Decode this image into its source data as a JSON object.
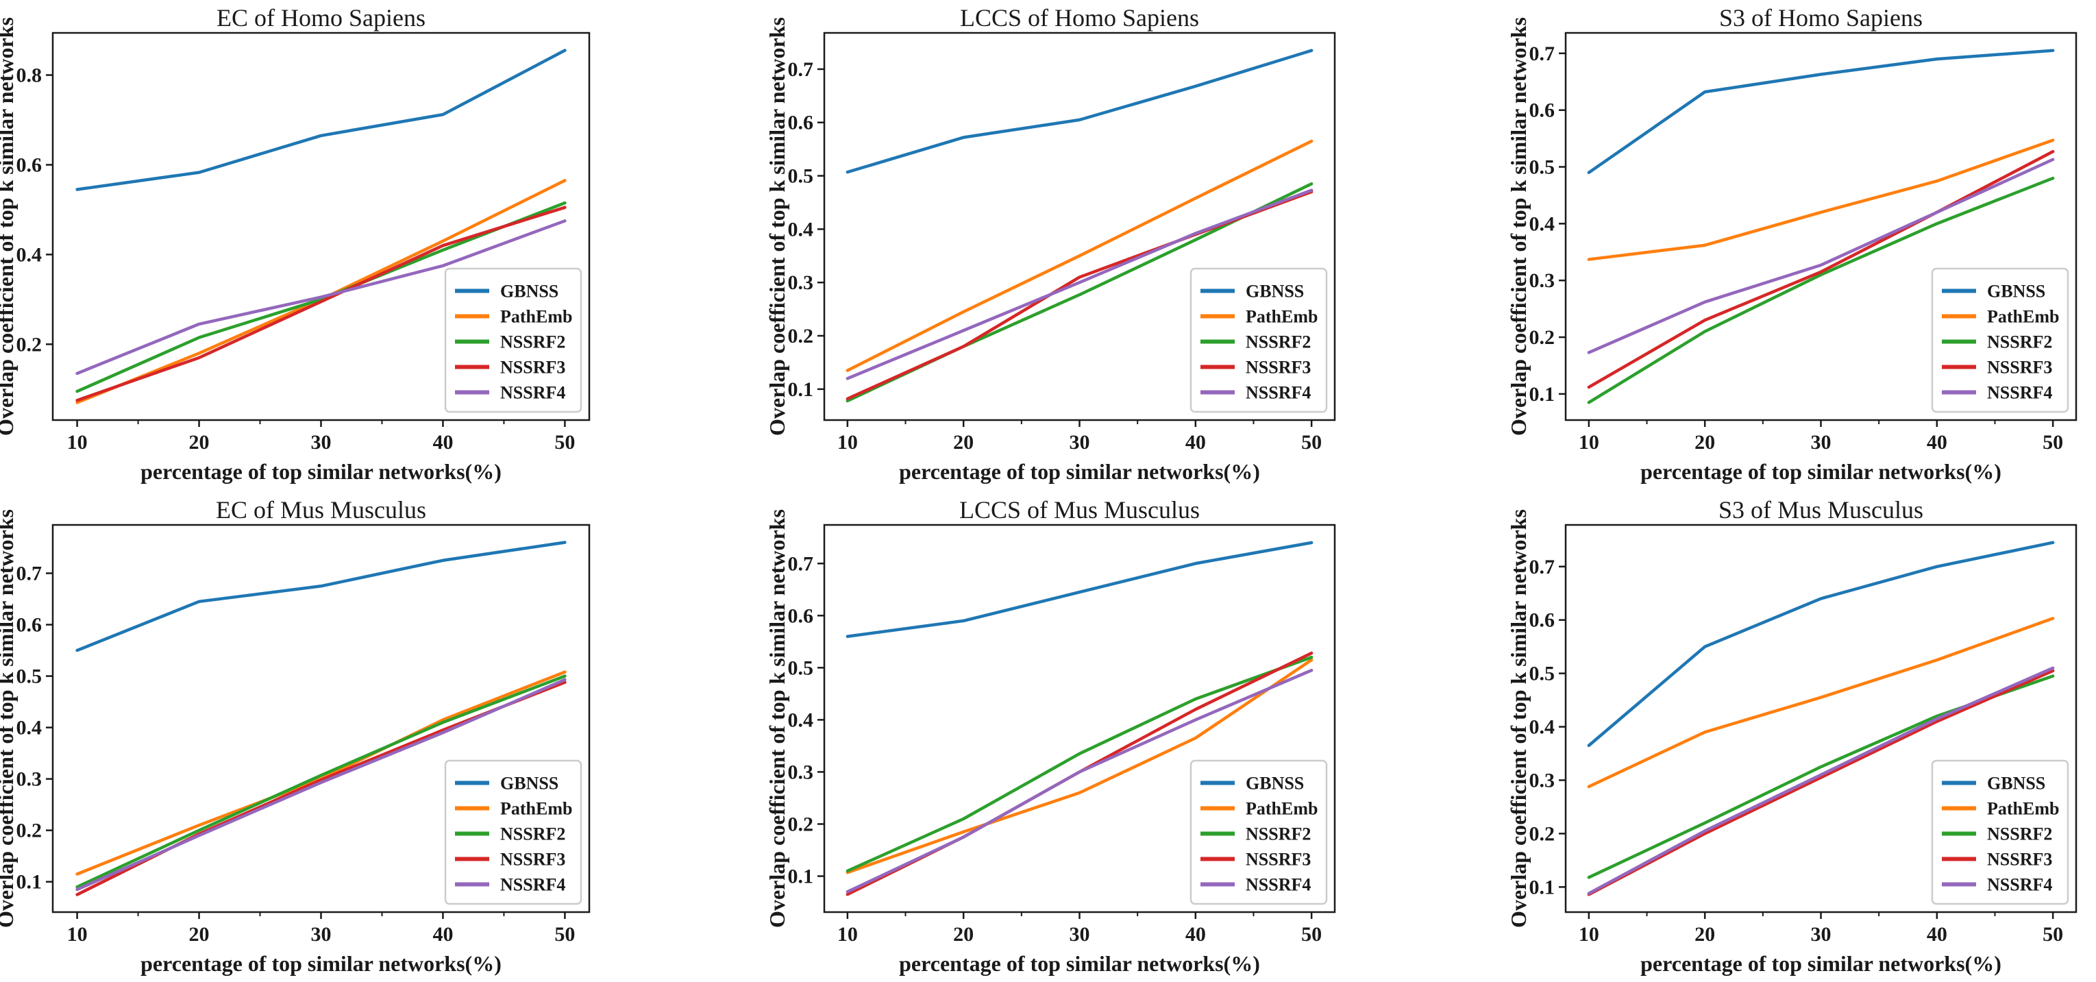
{
  "figure": {
    "background": "#ffffff",
    "text_color": "#1a1a1a",
    "spine_color": "#1a1a1a"
  },
  "palette": {
    "GBNSS": "#1f77b4",
    "PathEmb": "#ff7f0e",
    "NSSRF2": "#2ca02c",
    "NSSRF3": "#d62728",
    "NSSRF4": "#9467bd"
  },
  "legend_labels": [
    "GBNSS",
    "PathEmb",
    "NSSRF2",
    "NSSRF3",
    "NSSRF4"
  ],
  "chart_data": [
    {
      "type": "line",
      "title": "EC of Homo Sapiens",
      "xlabel": "percentage of top similar networks(%)",
      "ylabel": "Overlap coefficient of top k similar networks",
      "x": [
        10,
        20,
        30,
        40,
        50
      ],
      "xticks": [
        10,
        20,
        30,
        40,
        50
      ],
      "xminorticks": [
        15,
        25,
        35,
        45
      ],
      "xlim": [
        8,
        52
      ],
      "yticks": [
        0.2,
        0.4,
        0.6,
        0.8
      ],
      "ylim": [
        0.031,
        0.894
      ],
      "grid": false,
      "legend_position": "lower right",
      "series": [
        {
          "name": "GBNSS",
          "color": "#1f77b4",
          "values": [
            0.545,
            0.583,
            0.665,
            0.712,
            0.855
          ]
        },
        {
          "name": "PathEmb",
          "color": "#ff7f0e",
          "values": [
            0.07,
            0.18,
            0.3,
            0.43,
            0.565
          ]
        },
        {
          "name": "NSSRF2",
          "color": "#2ca02c",
          "values": [
            0.095,
            0.215,
            0.3,
            0.41,
            0.515
          ]
        },
        {
          "name": "NSSRF3",
          "color": "#d62728",
          "values": [
            0.075,
            0.17,
            0.295,
            0.42,
            0.505
          ]
        },
        {
          "name": "NSSRF4",
          "color": "#9467bd",
          "values": [
            0.135,
            0.245,
            0.305,
            0.375,
            0.475
          ]
        }
      ]
    },
    {
      "type": "line",
      "title": "LCCS of Homo Sapiens",
      "xlabel": "percentage of top similar networks(%)",
      "ylabel": "Overlap coefficient of top k similar networks",
      "x": [
        10,
        20,
        30,
        40,
        50
      ],
      "xticks": [
        10,
        20,
        30,
        40,
        50
      ],
      "xminorticks": [
        15,
        25,
        35,
        45
      ],
      "xlim": [
        8,
        52
      ],
      "yticks": [
        0.1,
        0.2,
        0.3,
        0.4,
        0.5,
        0.6,
        0.7
      ],
      "ylim": [
        0.042,
        0.768
      ],
      "grid": false,
      "legend_position": "lower right",
      "series": [
        {
          "name": "GBNSS",
          "color": "#1f77b4",
          "values": [
            0.507,
            0.572,
            0.605,
            0.668,
            0.735
          ]
        },
        {
          "name": "PathEmb",
          "color": "#ff7f0e",
          "values": [
            0.135,
            0.245,
            0.35,
            0.458,
            0.565
          ]
        },
        {
          "name": "NSSRF2",
          "color": "#2ca02c",
          "values": [
            0.078,
            0.18,
            0.277,
            0.38,
            0.485
          ]
        },
        {
          "name": "NSSRF3",
          "color": "#d62728",
          "values": [
            0.082,
            0.18,
            0.31,
            0.39,
            0.47
          ]
        },
        {
          "name": "NSSRF4",
          "color": "#9467bd",
          "values": [
            0.12,
            0.21,
            0.3,
            0.392,
            0.473
          ]
        }
      ]
    },
    {
      "type": "line",
      "title": "S3 of Homo Sapiens",
      "xlabel": "percentage of top similar networks(%)",
      "ylabel": "Overlap coefficient of top k similar networks",
      "x": [
        10,
        20,
        30,
        40,
        50
      ],
      "xticks": [
        10,
        20,
        30,
        40,
        50
      ],
      "xminorticks": [
        15,
        25,
        35,
        45
      ],
      "xlim": [
        8,
        52
      ],
      "yticks": [
        0.1,
        0.2,
        0.3,
        0.4,
        0.5,
        0.6,
        0.7
      ],
      "ylim": [
        0.054,
        0.736
      ],
      "grid": false,
      "legend_position": "lower right",
      "series": [
        {
          "name": "GBNSS",
          "color": "#1f77b4",
          "values": [
            0.49,
            0.632,
            0.663,
            0.69,
            0.705
          ]
        },
        {
          "name": "PathEmb",
          "color": "#ff7f0e",
          "values": [
            0.337,
            0.362,
            0.42,
            0.475,
            0.547
          ]
        },
        {
          "name": "NSSRF2",
          "color": "#2ca02c",
          "values": [
            0.085,
            0.21,
            0.31,
            0.4,
            0.48
          ]
        },
        {
          "name": "NSSRF3",
          "color": "#d62728",
          "values": [
            0.112,
            0.23,
            0.315,
            0.42,
            0.527
          ]
        },
        {
          "name": "NSSRF4",
          "color": "#9467bd",
          "values": [
            0.173,
            0.262,
            0.327,
            0.42,
            0.513
          ]
        }
      ]
    },
    {
      "type": "line",
      "title": "EC of Mus Musculus",
      "xlabel": "percentage of top similar networks(%)",
      "ylabel": "Overlap coefficient of top k similar networks",
      "x": [
        10,
        20,
        30,
        40,
        50
      ],
      "xticks": [
        10,
        20,
        30,
        40,
        50
      ],
      "xminorticks": [
        15,
        25,
        35,
        45
      ],
      "xlim": [
        8,
        52
      ],
      "yticks": [
        0.1,
        0.2,
        0.3,
        0.4,
        0.5,
        0.6,
        0.7
      ],
      "ylim": [
        0.041,
        0.794
      ],
      "grid": false,
      "legend_position": "lower right",
      "series": [
        {
          "name": "GBNSS",
          "color": "#1f77b4",
          "values": [
            0.55,
            0.645,
            0.675,
            0.725,
            0.76
          ]
        },
        {
          "name": "PathEmb",
          "color": "#ff7f0e",
          "values": [
            0.115,
            0.21,
            0.3,
            0.415,
            0.508
          ]
        },
        {
          "name": "NSSRF2",
          "color": "#2ca02c",
          "values": [
            0.09,
            0.2,
            0.307,
            0.41,
            0.5
          ]
        },
        {
          "name": "NSSRF3",
          "color": "#d62728",
          "values": [
            0.075,
            0.193,
            0.298,
            0.395,
            0.488
          ]
        },
        {
          "name": "NSSRF4",
          "color": "#9467bd",
          "values": [
            0.085,
            0.19,
            0.293,
            0.39,
            0.493
          ]
        }
      ]
    },
    {
      "type": "line",
      "title": "LCCS of Mus Musculus",
      "xlabel": "percentage of top similar networks(%)",
      "ylabel": "Overlap coefficient of top k similar networks",
      "x": [
        10,
        20,
        30,
        40,
        50
      ],
      "xticks": [
        10,
        20,
        30,
        40,
        50
      ],
      "xminorticks": [
        15,
        25,
        35,
        45
      ],
      "xlim": [
        8,
        52
      ],
      "yticks": [
        0.1,
        0.2,
        0.3,
        0.4,
        0.5,
        0.6,
        0.7
      ],
      "ylim": [
        0.031,
        0.774
      ],
      "grid": false,
      "legend_position": "lower right",
      "series": [
        {
          "name": "GBNSS",
          "color": "#1f77b4",
          "values": [
            0.56,
            0.59,
            0.645,
            0.7,
            0.74
          ]
        },
        {
          "name": "PathEmb",
          "color": "#ff7f0e",
          "values": [
            0.107,
            0.185,
            0.26,
            0.365,
            0.515
          ]
        },
        {
          "name": "NSSRF2",
          "color": "#2ca02c",
          "values": [
            0.11,
            0.21,
            0.335,
            0.44,
            0.52
          ]
        },
        {
          "name": "NSSRF3",
          "color": "#d62728",
          "values": [
            0.065,
            0.175,
            0.3,
            0.42,
            0.528
          ]
        },
        {
          "name": "NSSRF4",
          "color": "#9467bd",
          "values": [
            0.07,
            0.175,
            0.3,
            0.4,
            0.495
          ]
        }
      ]
    },
    {
      "type": "line",
      "title": "S3 of Mus Musculus",
      "xlabel": "percentage of top similar networks(%)",
      "ylabel": "Overlap coefficient of top k similar networks",
      "x": [
        10,
        20,
        30,
        40,
        50
      ],
      "xticks": [
        10,
        20,
        30,
        40,
        50
      ],
      "xminorticks": [
        15,
        25,
        35,
        45
      ],
      "xlim": [
        8,
        52
      ],
      "yticks": [
        0.1,
        0.2,
        0.3,
        0.4,
        0.5,
        0.6,
        0.7
      ],
      "ylim": [
        0.053,
        0.778
      ],
      "grid": false,
      "legend_position": "lower right",
      "series": [
        {
          "name": "GBNSS",
          "color": "#1f77b4",
          "values": [
            0.365,
            0.55,
            0.64,
            0.7,
            0.745
          ]
        },
        {
          "name": "PathEmb",
          "color": "#ff7f0e",
          "values": [
            0.288,
            0.39,
            0.455,
            0.525,
            0.603
          ]
        },
        {
          "name": "NSSRF2",
          "color": "#2ca02c",
          "values": [
            0.118,
            0.22,
            0.325,
            0.42,
            0.495
          ]
        },
        {
          "name": "NSSRF3",
          "color": "#d62728",
          "values": [
            0.086,
            0.2,
            0.305,
            0.41,
            0.505
          ]
        },
        {
          "name": "NSSRF4",
          "color": "#9467bd",
          "values": [
            0.088,
            0.205,
            0.31,
            0.415,
            0.51
          ]
        }
      ]
    }
  ]
}
